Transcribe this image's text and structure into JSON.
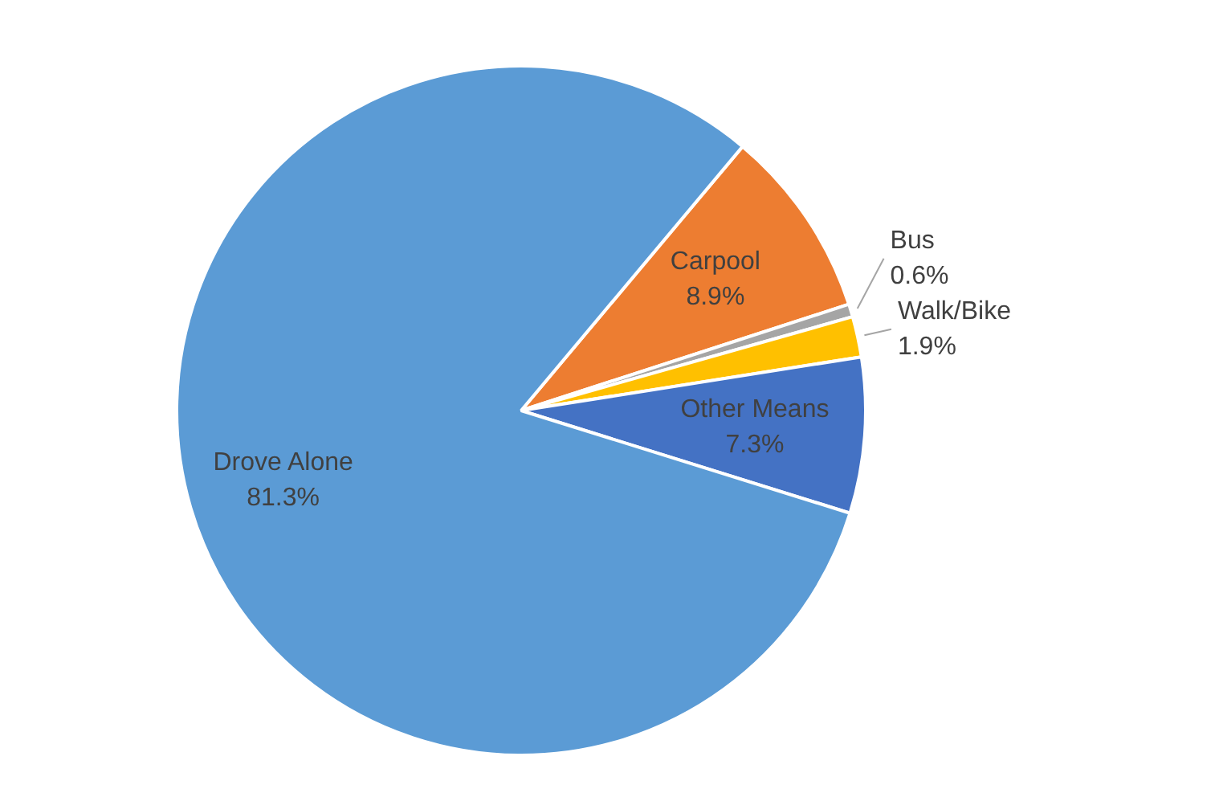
{
  "chart_data": {
    "type": "pie",
    "categories": [
      "Carpool",
      "Bus",
      "Walk/Bike",
      "Other Means",
      "Drove Alone"
    ],
    "values": [
      8.9,
      0.6,
      1.9,
      7.3,
      81.3
    ],
    "colors": [
      "#ed7d31",
      "#a5a5a5",
      "#ffc000",
      "#4472c4",
      "#5b9bd5"
    ],
    "value_labels": [
      "8.9%",
      "0.6%",
      "1.9%",
      "7.3%",
      "81.3%"
    ],
    "legend": false
  }
}
